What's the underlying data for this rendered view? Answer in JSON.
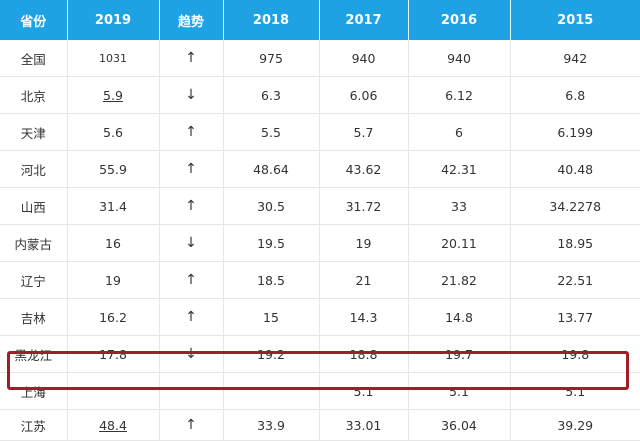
{
  "header": [
    "省份",
    "2019",
    "趋势",
    "2018",
    "2017",
    "2016",
    "2015"
  ],
  "rows": [
    {
      "province": "全国",
      "y2019": "1031",
      "trend": "↑",
      "y2018": "975",
      "y2017": "940",
      "y2016": "940",
      "y2015": "942"
    },
    {
      "province": "北京",
      "y2019": "5.9",
      "trend": "↓",
      "y2018": "6.3",
      "y2017": "6.06",
      "y2016": "6.12",
      "y2015": "6.8"
    },
    {
      "province": "天津",
      "y2019": "5.6",
      "trend": "↑",
      "y2018": "5.5",
      "y2017": "5.7",
      "y2016": "6",
      "y2015": "6.199"
    },
    {
      "province": "河北",
      "y2019": "55.9",
      "trend": "↑",
      "y2018": "48.64",
      "y2017": "43.62",
      "y2016": "42.31",
      "y2015": "40.48"
    },
    {
      "province": "山西",
      "y2019": "31.4",
      "trend": "↑",
      "y2018": "30.5",
      "y2017": "31.72",
      "y2016": "33",
      "y2015": "34.2278"
    },
    {
      "province": "内蒙古",
      "y2019": "16",
      "trend": "↓",
      "y2018": "19.5",
      "y2017": "19",
      "y2016": "20.11",
      "y2015": "18.95"
    },
    {
      "province": "辽宁",
      "y2019": "19",
      "trend": "↑",
      "y2018": "18.5",
      "y2017": "21",
      "y2016": "21.82",
      "y2015": "22.51"
    },
    {
      "province": "吉林",
      "y2019": "16.2",
      "trend": "↑",
      "y2018": "15",
      "y2017": "14.3",
      "y2016": "14.8",
      "y2015": "13.77"
    },
    {
      "province": "黑龙江",
      "y2019": "17.8",
      "trend": "↓",
      "y2018": "19.2",
      "y2017": "18.8",
      "y2016": "19.7",
      "y2015": "19.8"
    },
    {
      "province": "上海",
      "y2019": "",
      "trend": "",
      "y2018": "",
      "y2017": "5.1",
      "y2016": "5.1",
      "y2015": "5.1"
    },
    {
      "province": "江苏",
      "y2019": "48.4",
      "trend": "↑",
      "y2018": "33.9",
      "y2017": "33.01",
      "y2016": "36.04",
      "y2015": "39.29"
    }
  ],
  "highlight_color": "#a31d25",
  "header_color": "#1fa2e3"
}
